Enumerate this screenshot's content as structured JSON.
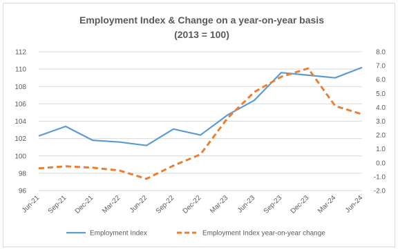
{
  "chart_data": {
    "type": "line",
    "title": "Employment Index & Change on a year-on-year basis",
    "subtitle": "(2013 = 100)",
    "categories": [
      "Jun-21",
      "Sep-21",
      "Dec-21",
      "Mar-22",
      "Jun-22",
      "Sep-22",
      "Dec-22",
      "Mar-23",
      "Jun-23",
      "Sep-23",
      "Dec-23",
      "Mar-24",
      "Jun-24"
    ],
    "y_left": {
      "min": 96,
      "max": 112,
      "step": 2,
      "ticks": [
        "96",
        "98",
        "100",
        "102",
        "104",
        "106",
        "108",
        "110",
        "112"
      ]
    },
    "y_right": {
      "min": -2.0,
      "max": 8.0,
      "step": 1.0,
      "ticks": [
        "-2.0",
        "-1.0",
        "0.0",
        "1.0",
        "2.0",
        "3.0",
        "4.0",
        "5.0",
        "6.0",
        "7.0",
        "8.0"
      ]
    },
    "gridlines": true,
    "legend_position": "bottom",
    "series": [
      {
        "name": "Employment Index",
        "axis": "left",
        "style": "solid",
        "color": "#5b9bd5",
        "values": [
          102.3,
          103.4,
          101.8,
          101.6,
          101.2,
          103.1,
          102.4,
          104.7,
          106.4,
          109.6,
          109.3,
          109.0,
          110.2
        ]
      },
      {
        "name": "Employment Index year-on-year change",
        "axis": "right",
        "style": "dashed",
        "color": "#ed7d31",
        "values": [
          -0.4,
          -0.25,
          -0.35,
          -0.55,
          -1.15,
          -0.2,
          0.6,
          3.2,
          5.1,
          6.2,
          6.8,
          4.1,
          3.5
        ]
      }
    ]
  }
}
